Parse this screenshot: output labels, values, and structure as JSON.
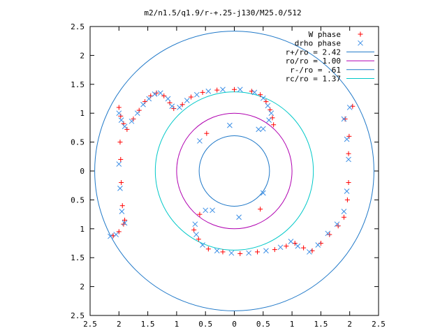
{
  "chart_data": {
    "type": "scatter",
    "title": "m2/n1.5/q1.9/r-+.25-j130/M25.0/512",
    "xlim": [
      -2.5,
      2.5
    ],
    "ylim": [
      -2.5,
      2.5
    ],
    "xticks": [
      {
        "value": -2.5,
        "label": "2.5"
      },
      {
        "value": -2,
        "label": "2"
      },
      {
        "value": -1.5,
        "label": "1.5"
      },
      {
        "value": -1,
        "label": "1"
      },
      {
        "value": -0.5,
        "label": "0.5"
      },
      {
        "value": 0,
        "label": "0"
      },
      {
        "value": 0.5,
        "label": "0.5"
      },
      {
        "value": 1,
        "label": "1"
      },
      {
        "value": 1.5,
        "label": "1.5"
      },
      {
        "value": 2,
        "label": "2"
      },
      {
        "value": 2.5,
        "label": "2.5"
      }
    ],
    "yticks": [
      {
        "value": 2.5,
        "label": "2.5"
      },
      {
        "value": 2,
        "label": "2"
      },
      {
        "value": 1.5,
        "label": "1.5"
      },
      {
        "value": 1,
        "label": "1"
      },
      {
        "value": 0.5,
        "label": "0.5"
      },
      {
        "value": 0,
        "label": "0"
      },
      {
        "value": -0.5,
        "label": "0.5"
      },
      {
        "value": -1,
        "label": "1"
      },
      {
        "value": -1.5,
        "label": "1.5"
      },
      {
        "value": -2,
        "label": "2"
      },
      {
        "value": -2.5,
        "label": "2.5"
      }
    ],
    "grid": false,
    "legend_position": "top-right",
    "legend": [
      {
        "label": "W phase",
        "marker": "plus",
        "color": "#ff0000"
      },
      {
        "label": "drho phase",
        "marker": "cross",
        "color": "#3a8ee6"
      },
      {
        "label": "r+/ro = 2.42",
        "marker": "line",
        "color": "#1f78c8"
      },
      {
        "label": "ro/ro = 1.00",
        "marker": "line",
        "color": "#b000b0"
      },
      {
        "label": "r-/ro = .61",
        "marker": "line",
        "color": "#1f78c8"
      },
      {
        "label": "rc/ro = 1.37",
        "marker": "line",
        "color": "#00c8c8"
      }
    ],
    "circles": [
      {
        "name": "r+/ro",
        "radius": 2.42,
        "color": "#1f78c8"
      },
      {
        "name": "ro/ro",
        "radius": 1.0,
        "color": "#b000b0"
      },
      {
        "name": "r-/ro",
        "radius": 0.61,
        "color": "#1f78c8"
      },
      {
        "name": "rc/ro",
        "radius": 1.37,
        "color": "#00c8c8"
      }
    ],
    "series": [
      {
        "name": "W phase",
        "marker": "plus",
        "color": "#ff0000",
        "points": [
          [
            -2.0,
            1.1
          ],
          [
            -1.97,
            0.95
          ],
          [
            -1.92,
            0.82
          ],
          [
            -1.86,
            0.72
          ],
          [
            -1.75,
            0.9
          ],
          [
            -1.65,
            1.05
          ],
          [
            -1.55,
            1.2
          ],
          [
            -1.45,
            1.3
          ],
          [
            -1.35,
            1.35
          ],
          [
            -1.22,
            1.3
          ],
          [
            -1.12,
            1.18
          ],
          [
            -1.05,
            1.08
          ],
          [
            -0.9,
            1.15
          ],
          [
            -0.75,
            1.28
          ],
          [
            -0.55,
            1.36
          ],
          [
            -0.3,
            1.4
          ],
          [
            0.0,
            1.41
          ],
          [
            0.3,
            1.38
          ],
          [
            0.45,
            1.32
          ],
          [
            0.55,
            1.2
          ],
          [
            0.62,
            1.06
          ],
          [
            0.66,
            0.92
          ],
          [
            0.68,
            0.8
          ],
          [
            -0.48,
            0.65
          ],
          [
            0.45,
            -0.66
          ],
          [
            -1.98,
            0.5
          ],
          [
            -1.97,
            0.2
          ],
          [
            -1.96,
            -0.2
          ],
          [
            -1.94,
            -0.6
          ],
          [
            -1.9,
            -0.85
          ],
          [
            -1.92,
            -0.92
          ],
          [
            -2.0,
            -1.05
          ],
          [
            -2.1,
            -1.12
          ],
          [
            1.98,
            -0.2
          ],
          [
            1.96,
            -0.5
          ],
          [
            1.9,
            -0.8
          ],
          [
            1.8,
            -0.95
          ],
          [
            1.65,
            -1.1
          ],
          [
            1.5,
            -1.25
          ],
          [
            1.35,
            -1.38
          ],
          [
            1.2,
            -1.33
          ],
          [
            1.05,
            -1.25
          ],
          [
            0.9,
            -1.3
          ],
          [
            0.7,
            -1.36
          ],
          [
            0.4,
            -1.4
          ],
          [
            0.1,
            -1.43
          ],
          [
            -0.2,
            -1.4
          ],
          [
            -0.45,
            -1.35
          ],
          [
            -0.62,
            -1.18
          ],
          [
            -0.7,
            -1.02
          ],
          [
            -0.6,
            -0.75
          ],
          [
            1.98,
            0.3
          ],
          [
            1.99,
            0.6
          ],
          [
            1.92,
            0.9
          ],
          [
            2.05,
            1.12
          ]
        ]
      },
      {
        "name": "drho phase",
        "marker": "cross",
        "color": "#3a8ee6",
        "points": [
          [
            -2.0,
            1.0
          ],
          [
            -1.96,
            0.88
          ],
          [
            -1.9,
            0.77
          ],
          [
            -1.78,
            0.86
          ],
          [
            -1.68,
            1.0
          ],
          [
            -1.58,
            1.15
          ],
          [
            -1.48,
            1.25
          ],
          [
            -1.38,
            1.33
          ],
          [
            -1.28,
            1.35
          ],
          [
            -1.15,
            1.25
          ],
          [
            -1.08,
            1.12
          ],
          [
            -0.95,
            1.1
          ],
          [
            -0.82,
            1.22
          ],
          [
            -0.65,
            1.32
          ],
          [
            -0.45,
            1.38
          ],
          [
            -0.2,
            1.41
          ],
          [
            0.1,
            1.41
          ],
          [
            0.35,
            1.36
          ],
          [
            0.5,
            1.26
          ],
          [
            0.58,
            1.13
          ],
          [
            0.64,
            1.0
          ],
          [
            0.6,
            0.88
          ],
          [
            0.42,
            0.72
          ],
          [
            0.5,
            0.73
          ],
          [
            -0.08,
            0.79
          ],
          [
            -0.6,
            0.52
          ],
          [
            0.5,
            -0.38
          ],
          [
            0.08,
            -0.8
          ],
          [
            -0.38,
            -0.68
          ],
          [
            -2.0,
            0.12
          ],
          [
            -1.98,
            -0.3
          ],
          [
            -1.95,
            -0.7
          ],
          [
            -1.9,
            -0.9
          ],
          [
            -2.05,
            -1.1
          ],
          [
            -2.15,
            -1.13
          ],
          [
            2.0,
            1.1
          ],
          [
            1.9,
            0.9
          ],
          [
            1.95,
            0.55
          ],
          [
            1.98,
            0.2
          ],
          [
            1.95,
            -0.35
          ],
          [
            1.9,
            -0.7
          ],
          [
            1.78,
            -0.92
          ],
          [
            1.62,
            -1.08
          ],
          [
            1.45,
            -1.28
          ],
          [
            1.3,
            -1.4
          ],
          [
            1.1,
            -1.3
          ],
          [
            0.98,
            -1.22
          ],
          [
            0.8,
            -1.32
          ],
          [
            0.55,
            -1.38
          ],
          [
            0.25,
            -1.42
          ],
          [
            -0.05,
            -1.42
          ],
          [
            -0.3,
            -1.38
          ],
          [
            -0.55,
            -1.28
          ],
          [
            -0.66,
            -1.1
          ],
          [
            -0.68,
            -0.92
          ],
          [
            -0.5,
            -0.68
          ]
        ]
      }
    ]
  }
}
